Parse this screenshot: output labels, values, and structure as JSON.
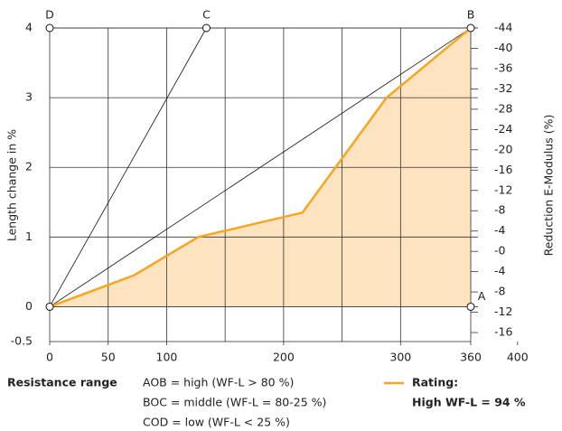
{
  "chart_data": {
    "type": "area-line",
    "y_label": "Length change in %",
    "y2_label": "Reduction E-Modulus (%)",
    "xlim": [
      0,
      360
    ],
    "xticks": [
      0,
      50,
      100,
      200,
      300,
      360,
      400
    ],
    "xgrid": [
      50,
      100,
      150,
      200,
      250,
      300
    ],
    "ylim": [
      -0.5,
      4
    ],
    "yticks": [
      -0.5,
      0,
      1,
      2,
      3,
      4
    ],
    "y2labels": [
      "-44",
      "-40",
      "-36",
      "-32",
      "-28",
      "-24",
      "-20",
      "-16",
      "-12",
      "-8",
      "-4",
      "-0",
      "-4",
      "-8",
      "-12",
      "-16"
    ],
    "grid": true,
    "series": [
      {
        "name": "Rating:",
        "color": "#f5a623",
        "fill": "#fde3bf",
        "x": [
          0,
          72,
          127,
          216,
          288,
          360
        ],
        "values": [
          0,
          0.45,
          1,
          1.35,
          3,
          4
        ]
      }
    ],
    "rating": "High WF-L = 94 %",
    "lines": [
      {
        "x": [
          0,
          134
        ],
        "y": [
          0,
          4
        ]
      },
      {
        "x": [
          0,
          360
        ],
        "y": [
          0,
          4
        ]
      }
    ],
    "points": [
      {
        "label": null,
        "x": 0,
        "y": 0
      },
      {
        "label": "D",
        "x": 0,
        "y": 4
      },
      {
        "label": "C",
        "x": 134,
        "y": 4
      },
      {
        "label": "B",
        "x": 360,
        "y": 4
      },
      {
        "label": "A",
        "x": 360,
        "y": 0
      }
    ],
    "range_title": "Resistance range",
    "ranges": [
      "AOB = high (WF-L > 80 %)",
      "BOC = middle (WF-L = 80-25 %)",
      "COD = low (WF-L < 25 %)"
    ]
  }
}
